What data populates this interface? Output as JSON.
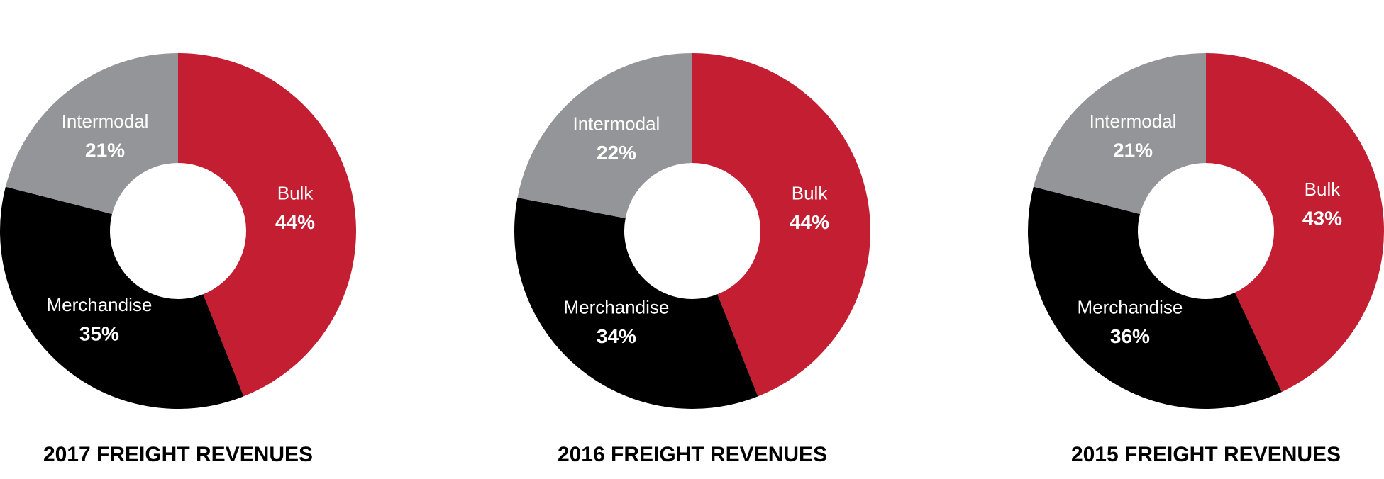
{
  "chart_data": [
    {
      "type": "pie",
      "title": "2017 FREIGHT REVENUES",
      "categories": [
        "Bulk",
        "Merchandise",
        "Intermodal"
      ],
      "values": [
        44,
        35,
        21
      ],
      "value_labels": [
        "44%",
        "35%",
        "21%"
      ],
      "colors": [
        "#c41e32",
        "#000000",
        "#939598"
      ]
    },
    {
      "type": "pie",
      "title": "2016 FREIGHT REVENUES",
      "categories": [
        "Bulk",
        "Merchandise",
        "Intermodal"
      ],
      "values": [
        44,
        34,
        22
      ],
      "value_labels": [
        "44%",
        "34%",
        "22%"
      ],
      "colors": [
        "#c41e32",
        "#000000",
        "#939598"
      ]
    },
    {
      "type": "pie",
      "title": "2015 FREIGHT REVENUES",
      "categories": [
        "Bulk",
        "Merchandise",
        "Intermodal"
      ],
      "values": [
        43,
        36,
        21
      ],
      "value_labels": [
        "43%",
        "36%",
        "21%"
      ],
      "colors": [
        "#c41e32",
        "#000000",
        "#939598"
      ]
    }
  ]
}
